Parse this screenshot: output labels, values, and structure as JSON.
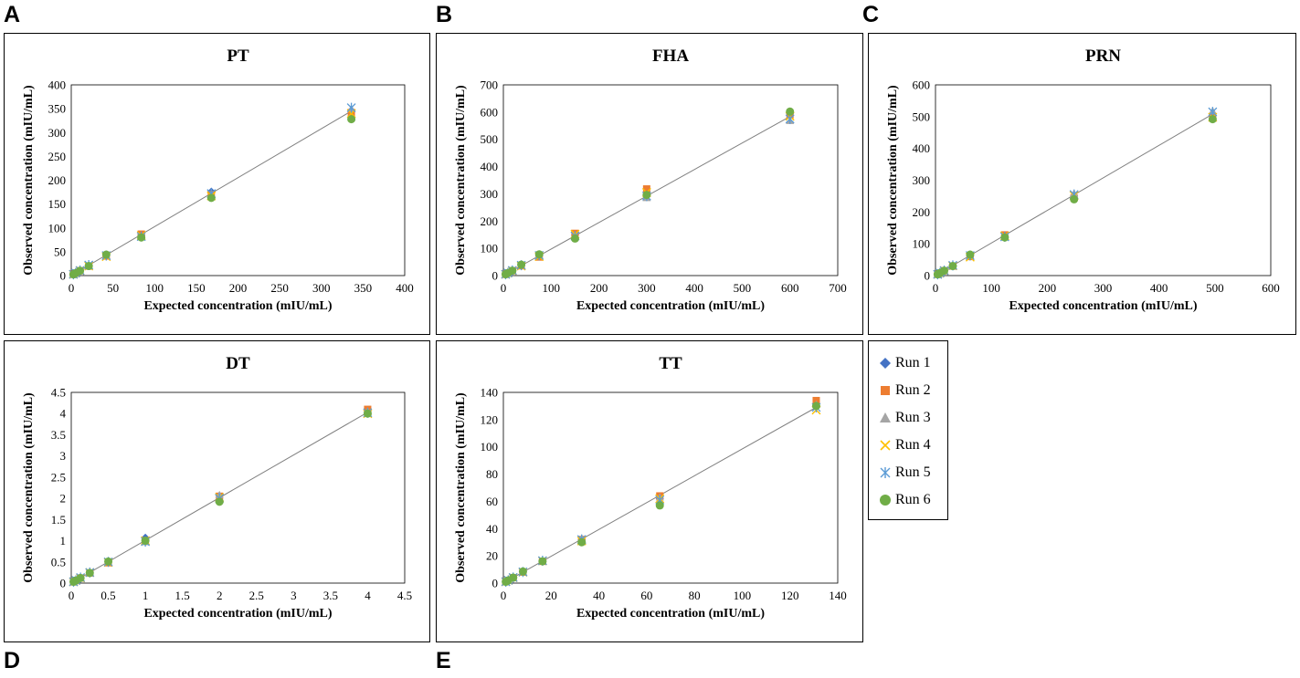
{
  "panel_letters": [
    "A",
    "B",
    "C",
    "D",
    "E"
  ],
  "legend": [
    {
      "name": "Run 1",
      "color": "#4472C4",
      "marker": "diamond"
    },
    {
      "name": "Run 2",
      "color": "#ED7D31",
      "marker": "square"
    },
    {
      "name": "Run 3",
      "color": "#A5A5A5",
      "marker": "triangle"
    },
    {
      "name": "Run 4",
      "color": "#FFC000",
      "marker": "x"
    },
    {
      "name": "Run 5",
      "color": "#5B9BD5",
      "marker": "star"
    },
    {
      "name": "Run 6",
      "color": "#70AD47",
      "marker": "circle"
    }
  ],
  "chart_data": [
    {
      "type": "scatter",
      "title": "PT",
      "xlabel": "Expected concentration (mIU/mL)",
      "ylabel": "Observed concentration (mIU/mL)",
      "xlim": [
        0,
        400
      ],
      "ylim": [
        0,
        400
      ],
      "xticks": [
        "0",
        "50",
        "100",
        "150",
        "200",
        "250",
        "300",
        "350",
        "400"
      ],
      "yticks": [
        "0",
        "50",
        "100",
        "150",
        "200",
        "250",
        "300",
        "350",
        "400"
      ],
      "x": [
        2.6,
        5.2,
        10.5,
        21,
        42,
        84,
        168,
        336
      ],
      "series": [
        {
          "name": "Run 1",
          "values": [
            2.7,
            5.3,
            10.6,
            21,
            43,
            85,
            176,
            345
          ]
        },
        {
          "name": "Run 2",
          "values": [
            2.6,
            5.1,
            10.3,
            20,
            41,
            87,
            170,
            342
          ]
        },
        {
          "name": "Run 3",
          "values": [
            2.5,
            5.0,
            10.2,
            21,
            42,
            83,
            168,
            350
          ]
        },
        {
          "name": "Run 4",
          "values": [
            2.6,
            5.2,
            10.4,
            20,
            40,
            84,
            167,
            340
          ]
        },
        {
          "name": "Run 5",
          "values": [
            2.7,
            5.3,
            10.7,
            22,
            42,
            82,
            172,
            352
          ]
        },
        {
          "name": "Run 6",
          "values": [
            2.5,
            5.1,
            10.1,
            20,
            44,
            80,
            163,
            328
          ]
        }
      ],
      "trendline": [
        [
          0,
          0
        ],
        [
          336,
          345
        ]
      ]
    },
    {
      "type": "scatter",
      "title": "FHA",
      "xlabel": "Expected concentration (mIU/mL)",
      "ylabel": "Observed concentration (mIU/mL)",
      "xlim": [
        0,
        700
      ],
      "ylim": [
        0,
        700
      ],
      "xticks": [
        "0",
        "100",
        "200",
        "300",
        "400",
        "500",
        "600",
        "700"
      ],
      "yticks": [
        "0",
        "100",
        "200",
        "300",
        "400",
        "500",
        "600",
        "700"
      ],
      "x": [
        4.7,
        9.4,
        18.8,
        37.5,
        75,
        150,
        300,
        600
      ],
      "series": [
        {
          "name": "Run 1",
          "values": [
            4.8,
            9.5,
            19,
            38,
            73,
            148,
            298,
            595
          ]
        },
        {
          "name": "Run 2",
          "values": [
            4.6,
            9.3,
            18,
            36,
            68,
            155,
            318,
            590
          ]
        },
        {
          "name": "Run 3",
          "values": [
            4.7,
            9.2,
            19,
            37,
            75,
            142,
            285,
            568
          ]
        },
        {
          "name": "Run 4",
          "values": [
            4.6,
            9.4,
            18,
            35,
            70,
            152,
            305,
            585
          ]
        },
        {
          "name": "Run 5",
          "values": [
            4.8,
            9.6,
            19,
            38,
            74,
            145,
            292,
            575
          ]
        },
        {
          "name": "Run 6",
          "values": [
            4.7,
            9.3,
            18,
            40,
            78,
            136,
            296,
            602
          ]
        }
      ],
      "trendline": [
        [
          0,
          0
        ],
        [
          600,
          584
        ]
      ]
    },
    {
      "type": "scatter",
      "title": "PRN",
      "xlabel": "Expected concentration (mIU/mL)",
      "ylabel": "Observed concentration (mIU/mL)",
      "xlim": [
        0,
        600
      ],
      "ylim": [
        0,
        600
      ],
      "xticks": [
        "0",
        "100",
        "200",
        "300",
        "400",
        "500",
        "600"
      ],
      "yticks": [
        "0",
        "100",
        "200",
        "300",
        "400",
        "500",
        "600"
      ],
      "x": [
        3.9,
        7.8,
        15.6,
        31,
        62,
        124,
        248,
        496
      ],
      "series": [
        {
          "name": "Run 1",
          "values": [
            3.9,
            7.9,
            15.5,
            31,
            61,
            123,
            250,
            505
          ]
        },
        {
          "name": "Run 2",
          "values": [
            3.8,
            7.7,
            15.3,
            30,
            60,
            128,
            245,
            500
          ]
        },
        {
          "name": "Run 3",
          "values": [
            3.9,
            7.8,
            15.8,
            32,
            62,
            121,
            258,
            518
          ]
        },
        {
          "name": "Run 4",
          "values": [
            3.8,
            7.6,
            15.4,
            31,
            58,
            125,
            252,
            498
          ]
        },
        {
          "name": "Run 5",
          "values": [
            4.0,
            8.0,
            15.7,
            32,
            63,
            122,
            255,
            515
          ]
        },
        {
          "name": "Run 6",
          "values": [
            3.9,
            7.8,
            15.5,
            30,
            66,
            120,
            240,
            492
          ]
        }
      ],
      "trendline": [
        [
          0,
          0
        ],
        [
          496,
          508
        ]
      ]
    },
    {
      "type": "scatter",
      "title": "DT",
      "xlabel": "Expected concentration (mIU/mL)",
      "ylabel": "Observed concentration (mIU/mL)",
      "xlim": [
        0,
        4.5
      ],
      "ylim": [
        0,
        4.5
      ],
      "xticks": [
        "0",
        "0.5",
        "1",
        "1.5",
        "2",
        "2.5",
        "3",
        "3.5",
        "4",
        "4.5"
      ],
      "yticks": [
        "0",
        "0.5",
        "1",
        "1.5",
        "2",
        "2.5",
        "3",
        "3.5",
        "4",
        "4.5"
      ],
      "x": [
        0.031,
        0.0625,
        0.125,
        0.25,
        0.5,
        1,
        2,
        4
      ],
      "series": [
        {
          "name": "Run 1",
          "values": [
            0.032,
            0.065,
            0.13,
            0.25,
            0.51,
            1.07,
            1.95,
            4.05
          ]
        },
        {
          "name": "Run 2",
          "values": [
            0.03,
            0.061,
            0.12,
            0.24,
            0.48,
            1.0,
            2.05,
            4.1
          ]
        },
        {
          "name": "Run 3",
          "values": [
            0.031,
            0.063,
            0.125,
            0.26,
            0.5,
            0.97,
            2.08,
            4.05
          ]
        },
        {
          "name": "Run 4",
          "values": [
            0.03,
            0.062,
            0.12,
            0.25,
            0.49,
            1.0,
            2.02,
            4.0
          ]
        },
        {
          "name": "Run 5",
          "values": [
            0.032,
            0.064,
            0.13,
            0.25,
            0.5,
            0.98,
            2.0,
            4.02
          ]
        },
        {
          "name": "Run 6",
          "values": [
            0.031,
            0.062,
            0.12,
            0.24,
            0.51,
            1.0,
            1.92,
            4.0
          ]
        }
      ],
      "trendline": [
        [
          0,
          0
        ],
        [
          4,
          4.03
        ]
      ]
    },
    {
      "type": "scatter",
      "title": "TT",
      "xlabel": "Expected concentration (mIU/mL)",
      "ylabel": "Observed concentration (mIU/mL)",
      "xlim": [
        0,
        140
      ],
      "ylim": [
        0,
        140
      ],
      "xticks": [
        "0",
        "20",
        "40",
        "60",
        "80",
        "100",
        "120",
        "140"
      ],
      "yticks": [
        "0",
        "20",
        "40",
        "60",
        "80",
        "100",
        "120",
        "140"
      ],
      "x": [
        1.02,
        2.05,
        4.1,
        8.2,
        16.4,
        32.8,
        65.5,
        131
      ],
      "series": [
        {
          "name": "Run 1",
          "values": [
            1.0,
            2.1,
            4.2,
            8.3,
            16.2,
            32,
            62,
            130
          ]
        },
        {
          "name": "Run 2",
          "values": [
            1.0,
            2.0,
            4.0,
            8.1,
            16.0,
            32,
            64,
            134
          ]
        },
        {
          "name": "Run 3",
          "values": [
            1.05,
            2.1,
            4.1,
            8.4,
            16.5,
            33,
            63,
            131
          ]
        },
        {
          "name": "Run 4",
          "values": [
            1.0,
            2.0,
            4.0,
            8.0,
            16.3,
            31,
            62,
            127
          ]
        },
        {
          "name": "Run 5",
          "values": [
            1.02,
            2.05,
            4.1,
            8.2,
            16.4,
            32,
            61,
            129
          ]
        },
        {
          "name": "Run 6",
          "values": [
            1.0,
            2.0,
            4.0,
            8.5,
            16.0,
            30,
            57,
            130
          ]
        }
      ],
      "trendline": [
        [
          0,
          0
        ],
        [
          131,
          129
        ]
      ]
    }
  ]
}
